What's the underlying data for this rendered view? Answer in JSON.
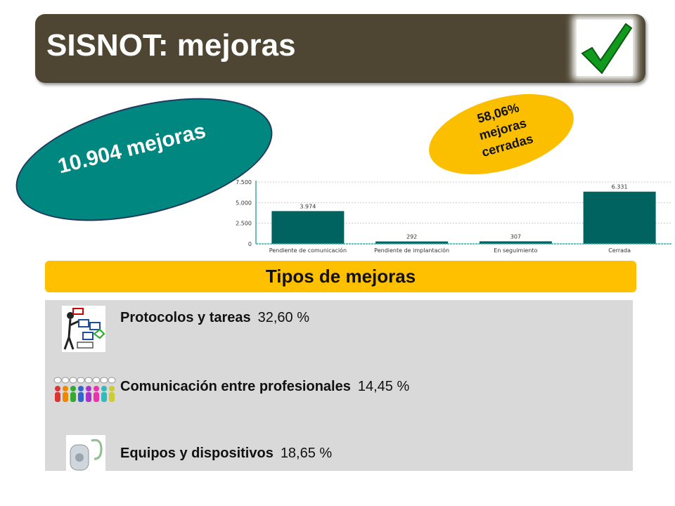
{
  "title": "SISNOT: mejoras",
  "total": "10.904 mejoras",
  "closed": {
    "pct": "58,06%",
    "l1": "mejoras",
    "l2": "cerradas"
  },
  "types_title": "Tipos de mejoras",
  "types": [
    {
      "label": "Protocolos y tareas",
      "value": "32,60 %",
      "icon": "flowchart-icon"
    },
    {
      "label": "Comunicación entre profesionales",
      "value": "14,45 %",
      "icon": "people-speech-icon"
    },
    {
      "label": "Equipos y dispositivos",
      "value": "18,65 %",
      "icon": "medical-device-icon"
    }
  ],
  "colors": {
    "title_bg": "#4e4632",
    "bar": "#00635f",
    "ellipse_teal": "#00877f",
    "yellow": "#ffc000"
  },
  "chart_data": {
    "type": "bar",
    "categories": [
      "Pendiente de comunicación",
      "Pendiente de implantación",
      "En seguimiento",
      "Cerrada"
    ],
    "values": [
      3974,
      292,
      307,
      6331
    ],
    "value_labels": [
      "3.974",
      "292",
      "307",
      "6.331"
    ],
    "yticks": [
      "0",
      "2.500",
      "5.000",
      "7.500"
    ],
    "ytick_values": [
      0,
      2500,
      5000,
      7500
    ],
    "ylim": [
      0,
      7500
    ],
    "grid": true
  }
}
